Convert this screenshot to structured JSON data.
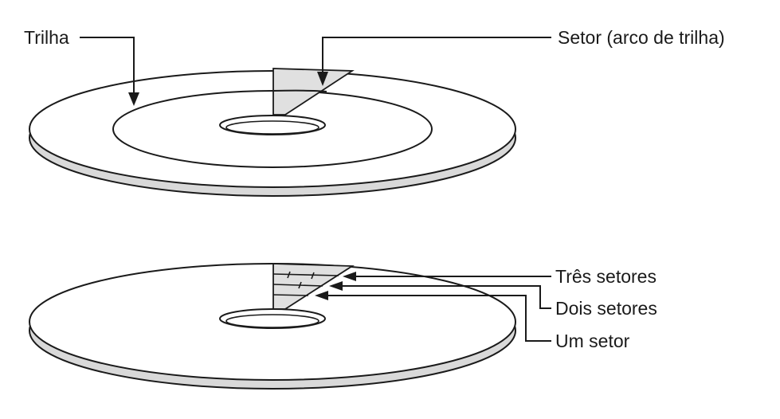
{
  "top_disk": {
    "track_label": "Trilha",
    "sector_label": "Setor (arco de trilha)"
  },
  "bottom_disk": {
    "three_sectors_label": "Três setores",
    "two_sectors_label": "Dois setores",
    "one_sector_label": "Um setor"
  },
  "colors": {
    "ink": "#1a1a1a",
    "disk_edge": "#d9d9d9",
    "sector_fill": "#e0e0e0",
    "background": "#ffffff"
  }
}
